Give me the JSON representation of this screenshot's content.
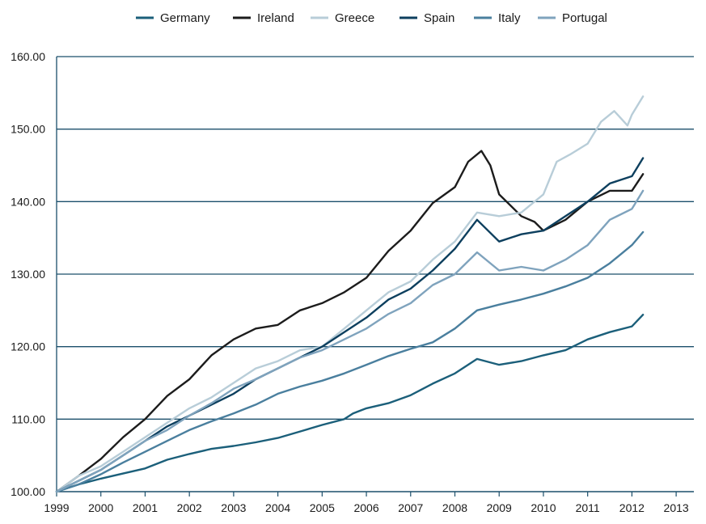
{
  "chart_data": {
    "type": "line",
    "title": "",
    "xlabel": "",
    "ylabel": "",
    "xlim": [
      1999,
      2013.4
    ],
    "ylim": [
      100,
      160
    ],
    "x_ticks": [
      "1999",
      "2000",
      "2001",
      "2002",
      "2003",
      "2004",
      "2005",
      "2006",
      "2007",
      "2008",
      "2009",
      "2010",
      "2011",
      "2012",
      "2013"
    ],
    "y_ticks": [
      "100.00",
      "110.00",
      "120.00",
      "130.00",
      "140.00",
      "150.00",
      "160.00"
    ],
    "grid": "horizontal",
    "legend": "top",
    "series": [
      {
        "name": "Germany",
        "color": "#1b5f7a",
        "x": [
          1999.0,
          1999.5,
          2000.0,
          2000.5,
          2001.0,
          2001.5,
          2002.0,
          2002.5,
          2003.0,
          2003.5,
          2004.0,
          2004.5,
          2005.0,
          2005.5,
          2005.7,
          2006.0,
          2006.5,
          2007.0,
          2007.5,
          2008.0,
          2008.5,
          2009.0,
          2009.5,
          2010.0,
          2010.5,
          2011.0,
          2011.5,
          2012.0,
          2012.25
        ],
        "y": [
          100.0,
          101.0,
          101.8,
          102.5,
          103.2,
          104.4,
          105.2,
          105.9,
          106.3,
          106.8,
          107.4,
          108.3,
          109.2,
          110.0,
          110.8,
          111.5,
          112.2,
          113.3,
          114.9,
          116.3,
          118.3,
          117.5,
          118.0,
          118.8,
          119.5,
          121.0,
          122.0,
          122.8,
          124.4
        ]
      },
      {
        "name": "Ireland",
        "color": "#1c1c1c",
        "x": [
          1999.0,
          1999.5,
          2000.0,
          2000.5,
          2001.0,
          2001.5,
          2002.0,
          2002.5,
          2003.0,
          2003.5,
          2004.0,
          2004.5,
          2005.0,
          2005.5,
          2006.0,
          2006.5,
          2007.0,
          2007.5,
          2008.0,
          2008.3,
          2008.6,
          2008.8,
          2009.0,
          2009.2,
          2009.5,
          2009.8,
          2010.0,
          2010.5,
          2011.0,
          2011.5,
          2012.0,
          2012.25
        ],
        "y": [
          100.0,
          102.2,
          104.5,
          107.5,
          110.0,
          113.2,
          115.5,
          118.8,
          121.0,
          122.5,
          123.0,
          125.0,
          126.0,
          127.5,
          129.5,
          133.2,
          136.0,
          139.8,
          142.0,
          145.5,
          147.0,
          145.0,
          141.0,
          139.8,
          138.0,
          137.2,
          136.0,
          137.5,
          140.0,
          141.5,
          141.5,
          143.8
        ]
      },
      {
        "name": "Greece",
        "color": "#b8cdd8",
        "x": [
          1999.0,
          1999.5,
          2000.0,
          2000.5,
          2001.0,
          2001.5,
          2002.0,
          2002.5,
          2003.0,
          2003.5,
          2004.0,
          2004.5,
          2005.0,
          2005.5,
          2006.0,
          2006.5,
          2007.0,
          2007.5,
          2008.0,
          2008.5,
          2009.0,
          2009.5,
          2010.0,
          2010.3,
          2010.6,
          2011.0,
          2011.3,
          2011.6,
          2011.9,
          2012.0,
          2012.25
        ],
        "y": [
          100.0,
          102.2,
          103.5,
          105.5,
          107.5,
          109.5,
          111.5,
          113.0,
          115.0,
          117.0,
          118.0,
          119.5,
          120.0,
          122.5,
          125.0,
          127.5,
          129.0,
          132.0,
          134.5,
          138.5,
          138.0,
          138.5,
          141.0,
          145.5,
          146.5,
          148.0,
          151.0,
          152.5,
          150.5,
          152.0,
          154.5
        ]
      },
      {
        "name": "Spain",
        "color": "#0d3f5e",
        "x": [
          1999.0,
          1999.5,
          2000.0,
          2000.5,
          2001.0,
          2001.5,
          2002.0,
          2002.5,
          2003.0,
          2003.5,
          2004.0,
          2004.5,
          2005.0,
          2005.5,
          2006.0,
          2006.5,
          2007.0,
          2007.5,
          2008.0,
          2008.5,
          2009.0,
          2009.5,
          2010.0,
          2010.5,
          2011.0,
          2011.5,
          2012.0,
          2012.25
        ],
        "y": [
          100.0,
          101.5,
          103.0,
          105.0,
          107.0,
          109.0,
          110.5,
          112.0,
          113.5,
          115.5,
          117.0,
          118.5,
          120.0,
          122.0,
          124.0,
          126.5,
          128.0,
          130.5,
          133.5,
          137.5,
          134.5,
          135.5,
          136.0,
          138.0,
          140.0,
          142.5,
          143.5,
          146.0
        ]
      },
      {
        "name": "Italy",
        "color": "#4a7f9e",
        "x": [
          1999.0,
          1999.5,
          2000.0,
          2000.5,
          2001.0,
          2001.5,
          2002.0,
          2002.5,
          2003.0,
          2003.5,
          2004.0,
          2004.5,
          2005.0,
          2005.5,
          2006.0,
          2006.5,
          2007.0,
          2007.5,
          2008.0,
          2008.5,
          2009.0,
          2009.5,
          2010.0,
          2010.5,
          2011.0,
          2011.5,
          2012.0,
          2012.25
        ],
        "y": [
          100.0,
          101.0,
          102.4,
          104.0,
          105.5,
          107.0,
          108.5,
          109.7,
          110.8,
          112.0,
          113.5,
          114.5,
          115.3,
          116.3,
          117.5,
          118.7,
          119.7,
          120.6,
          122.5,
          125.0,
          125.8,
          126.5,
          127.3,
          128.3,
          129.5,
          131.5,
          134.0,
          135.8
        ]
      },
      {
        "name": "Portugal",
        "color": "#7fa3bd",
        "x": [
          1999.0,
          1999.5,
          2000.0,
          2000.5,
          2001.0,
          2001.5,
          2002.0,
          2002.5,
          2003.0,
          2003.5,
          2004.0,
          2004.5,
          2005.0,
          2005.5,
          2006.0,
          2006.5,
          2007.0,
          2007.5,
          2008.0,
          2008.5,
          2009.0,
          2009.5,
          2010.0,
          2010.5,
          2011.0,
          2011.5,
          2012.0,
          2012.25
        ],
        "y": [
          100.0,
          101.5,
          103.0,
          105.0,
          107.0,
          108.5,
          110.5,
          112.2,
          114.2,
          115.5,
          117.0,
          118.5,
          119.5,
          121.0,
          122.5,
          124.5,
          126.0,
          128.5,
          130.0,
          133.0,
          130.5,
          131.0,
          130.5,
          132.0,
          134.0,
          137.5,
          139.0,
          141.5
        ]
      }
    ]
  }
}
